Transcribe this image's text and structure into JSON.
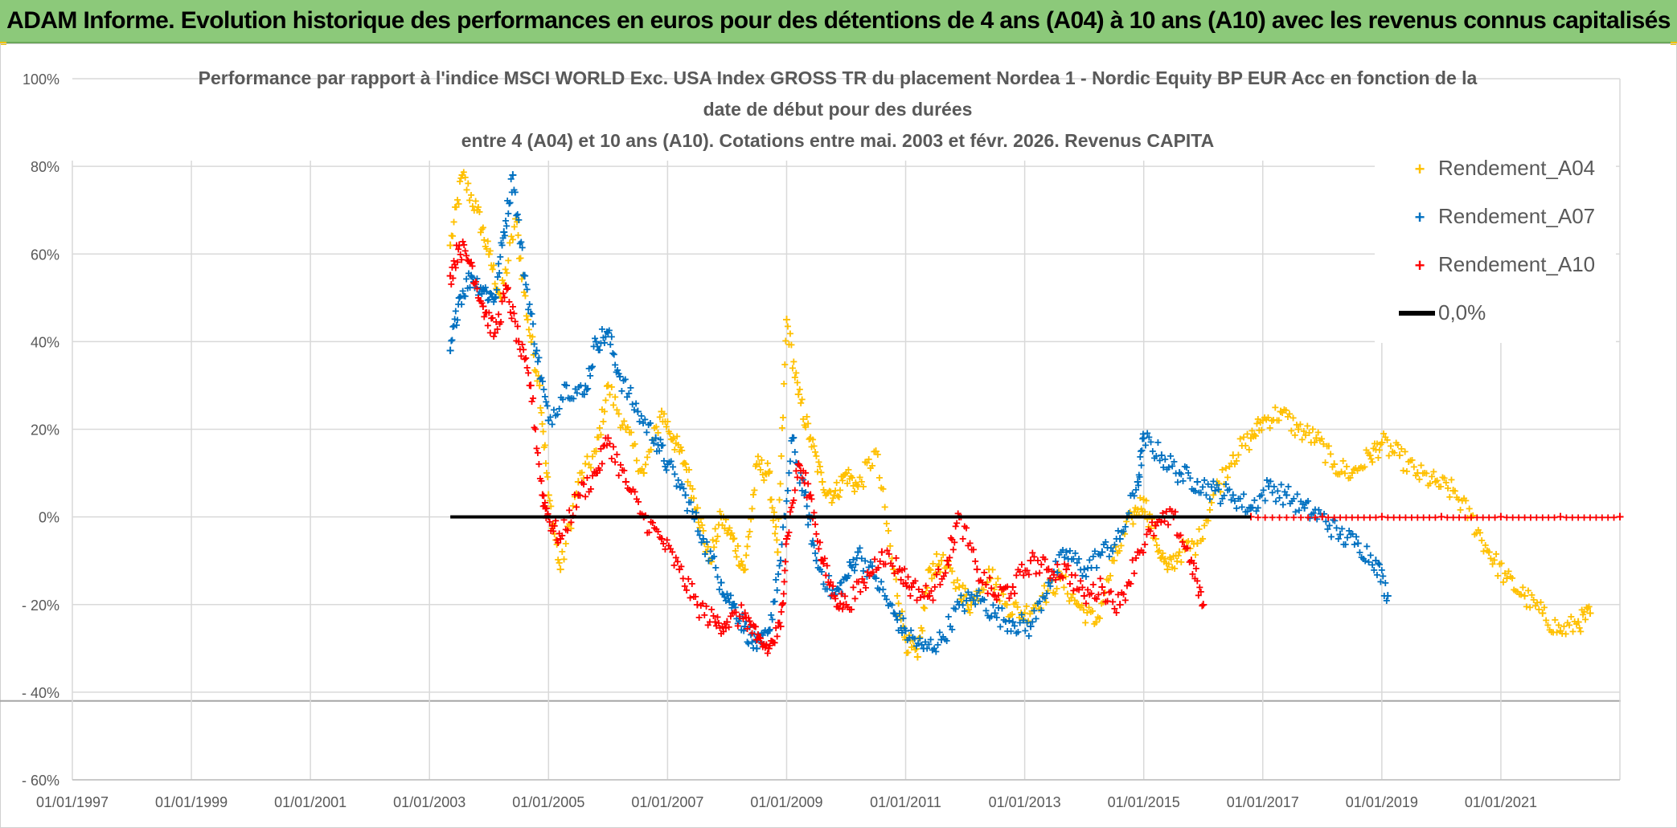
{
  "banner": {
    "title": "ADAM Informe. Evolution historique des performances en euros pour des détentions de 4 ans (A04) à 10 ans (A10) avec les revenus connus capitalisés"
  },
  "colors": {
    "banner_bg": "#8cc97a",
    "A04": "#ffc000",
    "A07": "#0070c0",
    "A10": "#ff0000",
    "zero": "#000000",
    "grid": "#d9d9d9",
    "text": "#595959"
  },
  "chart_data": {
    "type": "scatter",
    "title_lines": [
      "Performance  par rapport à l'indice MSCI WORLD Exc. USA Index GROSS TR  du placement Nordea 1 - Nordic Equity BP EUR Acc en fonction de la",
      "date de début pour des durées",
      "entre 4 (A04) et 10 ans (A10). Cotations entre mai. 2003 et févr. 2026. Revenus CAPITA"
    ],
    "xlim": [
      1997.0,
      2023.0
    ],
    "x_ticks": [
      1997,
      1999,
      2001,
      2003,
      2005,
      2007,
      2009,
      2011,
      2013,
      2015,
      2017,
      2019,
      2021
    ],
    "x_tick_labels": [
      "01/01/1997",
      "01/01/1999",
      "01/01/2001",
      "01/01/2003",
      "01/01/2005",
      "01/01/2007",
      "01/01/2009",
      "01/01/2011",
      "01/01/2013",
      "01/01/2015",
      "01/01/2017",
      "01/01/2019",
      "01/01/2021"
    ],
    "ylim": [
      -60,
      100
    ],
    "y_ticks": [
      100,
      80,
      60,
      40,
      20,
      0,
      -20,
      -40,
      -60
    ],
    "y_tick_labels": [
      "100%",
      "80%",
      "60%",
      "40%",
      "20%",
      "0%",
      "- 20%",
      "- 40%",
      "- 60%"
    ],
    "series": [
      {
        "name": "Rendement_A04",
        "key": "A04",
        "marker": "+",
        "x": [
          2003.35,
          2003.55,
          2003.8,
          2004.0,
          2004.2,
          2004.45,
          2004.65,
          2004.85,
          2005.0,
          2005.2,
          2005.5,
          2005.8,
          2006.0,
          2006.3,
          2006.6,
          2006.9,
          2007.1,
          2007.3,
          2007.5,
          2007.7,
          2007.9,
          2008.1,
          2008.3,
          2008.5,
          2008.7,
          2008.85,
          2009.0,
          2009.2,
          2009.4,
          2009.6,
          2009.8,
          2010.0,
          2010.2,
          2010.5,
          2010.8,
          2011.0,
          2011.2,
          2011.4,
          2011.6,
          2011.9,
          2012.1,
          2012.4,
          2012.7,
          2013.0,
          2013.3,
          2013.6,
          2013.9,
          2014.2,
          2014.5,
          2014.8,
          2015.0,
          2015.2,
          2015.4,
          2015.6,
          2015.9,
          2016.2,
          2016.5,
          2016.8,
          2017.0,
          2017.3,
          2017.6,
          2017.9,
          2018.2,
          2018.5,
          2018.8,
          2019.0,
          2019.3,
          2019.6,
          2019.9,
          2020.2,
          2020.5,
          2020.8,
          2021.1,
          2021.4,
          2021.7,
          2022.0,
          2022.3,
          2022.5
        ],
        "y": [
          62,
          78,
          70,
          60,
          50,
          68,
          45,
          30,
          5,
          -12,
          8,
          15,
          30,
          20,
          10,
          24,
          18,
          12,
          2,
          -10,
          0,
          -5,
          -12,
          12,
          10,
          -8,
          45,
          28,
          18,
          8,
          5,
          10,
          7,
          15,
          -12,
          -28,
          -32,
          -12,
          -10,
          -16,
          -20,
          -12,
          -20,
          -22,
          -18,
          -14,
          -20,
          -24,
          -10,
          0,
          4,
          -5,
          -12,
          -8,
          -6,
          6,
          14,
          18,
          22,
          24,
          20,
          18,
          12,
          10,
          14,
          17,
          14,
          10,
          8,
          6,
          0,
          -8,
          -14,
          -18,
          -22,
          -26,
          -24,
          -22
        ]
      },
      {
        "name": "Rendement_A07",
        "key": "A07",
        "marker": "+",
        "x": [
          2003.35,
          2003.5,
          2003.7,
          2003.9,
          2004.1,
          2004.25,
          2004.4,
          2004.6,
          2004.8,
          2005.0,
          2005.3,
          2005.6,
          2005.8,
          2006.0,
          2006.2,
          2006.5,
          2006.8,
          2007.0,
          2007.3,
          2007.6,
          2007.9,
          2008.1,
          2008.3,
          2008.5,
          2008.7,
          2008.9,
          2009.1,
          2009.3,
          2009.5,
          2009.8,
          2010.0,
          2010.2,
          2010.5,
          2010.8,
          2011.0,
          2011.3,
          2011.6,
          2011.9,
          2012.2,
          2012.5,
          2012.8,
          2013.1,
          2013.4,
          2013.7,
          2014.0,
          2014.3,
          2014.6,
          2014.9,
          2015.0,
          2015.3,
          2015.6,
          2015.9,
          2016.2,
          2016.5,
          2016.8,
          2017.1,
          2017.4,
          2017.7,
          2018.0,
          2018.3,
          2018.6,
          2018.9,
          2019.1
        ],
        "y": [
          38,
          50,
          55,
          52,
          50,
          65,
          78,
          55,
          38,
          22,
          30,
          28,
          40,
          42,
          32,
          24,
          18,
          12,
          5,
          -5,
          -15,
          -20,
          -25,
          -30,
          -26,
          -10,
          18,
          5,
          -10,
          -18,
          -14,
          -8,
          -14,
          -22,
          -26,
          -30,
          -28,
          -20,
          -18,
          -22,
          -24,
          -25,
          -15,
          -8,
          -12,
          -8,
          -5,
          8,
          18,
          14,
          10,
          8,
          6,
          5,
          2,
          7,
          5,
          2,
          0,
          -4,
          -6,
          -10,
          -18
        ]
      },
      {
        "name": "Rendement_A10",
        "key": "A10",
        "marker": "+",
        "x": [
          2003.35,
          2003.5,
          2003.7,
          2003.9,
          2004.1,
          2004.3,
          2004.5,
          2004.7,
          2004.9,
          2005.0,
          2005.2,
          2005.5,
          2005.8,
          2006.0,
          2006.3,
          2006.6,
          2006.9,
          2007.2,
          2007.5,
          2007.8,
          2008.0,
          2008.3,
          2008.5,
          2008.7,
          2008.9,
          2009.0,
          2009.2,
          2009.4,
          2009.6,
          2009.8,
          2010.0,
          2010.3,
          2010.6,
          2010.9,
          2011.1,
          2011.4,
          2011.7,
          2011.9,
          2012.2,
          2012.5,
          2012.8,
          2013.1,
          2013.4,
          2013.7,
          2014.0,
          2014.3,
          2014.6,
          2014.9,
          2015.2,
          2015.5,
          2015.8,
          2016.0
        ],
        "y": [
          55,
          62,
          58,
          48,
          42,
          52,
          40,
          30,
          5,
          0,
          -5,
          5,
          10,
          18,
          8,
          0,
          -5,
          -12,
          -20,
          -24,
          -24,
          -22,
          -28,
          -30,
          -25,
          -5,
          12,
          5,
          -10,
          -18,
          -20,
          -15,
          -8,
          -12,
          -16,
          -18,
          -10,
          0,
          -12,
          -18,
          -16,
          -10,
          -12,
          -12,
          -18,
          -16,
          -20,
          -8,
          -2,
          0,
          -10,
          -20
        ]
      },
      {
        "name": "Rendement_A10",
        "key": "A10",
        "marker": "+",
        "legend": false,
        "x": [
          2016.8,
          2018.0,
          2019.0,
          2020.0,
          2021.0,
          2022.0,
          2023.0
        ],
        "y": [
          0,
          0,
          0,
          0,
          0,
          0,
          0
        ]
      }
    ],
    "zero_line": {
      "name": "0,0%",
      "x_start": 2003.35,
      "x_end": 2016.8,
      "y": 0
    },
    "legend": {
      "placement": "top-right",
      "entries": [
        {
          "label": "Rendement_A04",
          "key": "A04",
          "symbol": "+"
        },
        {
          "label": "Rendement_A07",
          "key": "A07",
          "symbol": "+"
        },
        {
          "label": "Rendement_A10",
          "key": "A10",
          "symbol": "+"
        },
        {
          "label": "0,0%",
          "key": "zero",
          "symbol": "line"
        }
      ]
    },
    "grid": true
  }
}
